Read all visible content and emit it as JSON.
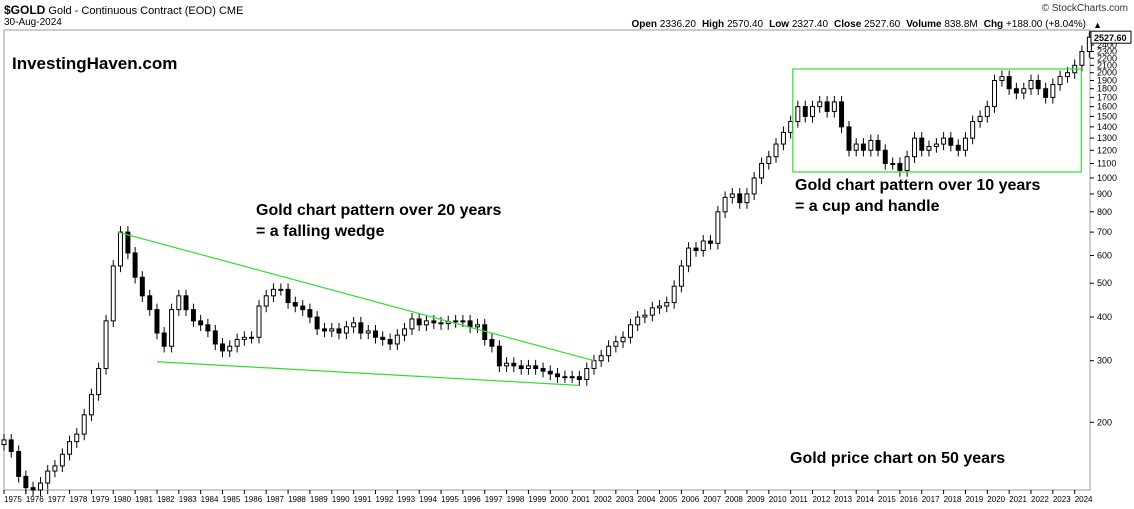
{
  "header": {
    "symbol": "$GOLD",
    "title": "Gold - Continuous Contract (EOD)",
    "exchange": "CME",
    "date": "30-Aug-2024",
    "source": "© StockCharts.com",
    "ohlc": [
      {
        "label": "Open",
        "value": "2336.20"
      },
      {
        "label": "High",
        "value": "2570.40"
      },
      {
        "label": "Low",
        "value": "2327.40"
      },
      {
        "label": "Close",
        "value": "2527.60"
      },
      {
        "label": "Volume",
        "value": "838.8M"
      },
      {
        "label": "Chg",
        "value": "+188.00 (+8.04%)"
      }
    ],
    "change_arrow": "▲"
  },
  "watermark": "InvestingHaven.com",
  "annotations": {
    "wedge_line1": "Gold chart pattern over 20 years",
    "wedge_line2": "= a falling wedge",
    "cup_line1": "Gold chart pattern over 10 years",
    "cup_line2": "= a cup and handle",
    "summary": "Gold price chart on 50 years"
  },
  "colors": {
    "candle": "#000000",
    "pattern": "#33dd33",
    "last_price_marker": "#000000"
  },
  "chart_data": {
    "type": "candlestick",
    "scale": "log",
    "ylim": [
      128,
      2650
    ],
    "xlim": [
      1975,
      2024.7
    ],
    "y_ticks": [
      200,
      300,
      400,
      500,
      600,
      700,
      800,
      900,
      1000,
      1100,
      1200,
      1300,
      1400,
      1500,
      1600,
      1700,
      1800,
      1900,
      2000,
      2100,
      2200,
      2300,
      2400,
      2500
    ],
    "x_ticks": [
      "1975",
      "1976",
      "1977",
      "1978",
      "1979",
      "1980",
      "1981",
      "1982",
      "1983",
      "1984",
      "1985",
      "1986",
      "1987",
      "1988",
      "1989",
      "1990",
      "1991",
      "1992",
      "1993",
      "1994",
      "1995",
      "1996",
      "1997",
      "1998",
      "1999",
      "2000",
      "2001",
      "2002",
      "2003",
      "2004",
      "2005",
      "2006",
      "2007",
      "2008",
      "2009",
      "2010",
      "2011",
      "2012",
      "2013",
      "2014",
      "2015",
      "2016",
      "2017",
      "2018",
      "2019",
      "2020",
      "2021",
      "2022",
      "2023",
      "2024"
    ],
    "last_price": "2527.60",
    "series": [
      {
        "x": [
          1975.0,
          1975.33,
          1975.67,
          1976.0,
          1976.33,
          1976.67,
          1977.0,
          1977.33,
          1977.67,
          1978.0,
          1978.33,
          1978.67,
          1979.0,
          1979.33,
          1979.67,
          1980.0,
          1980.33,
          1980.67,
          1981.0,
          1981.33,
          1981.67,
          1982.0,
          1982.33,
          1982.67,
          1983.0,
          1983.33,
          1983.67,
          1984.0,
          1984.33,
          1984.67,
          1985.0,
          1985.33,
          1985.67,
          1986.0,
          1986.33,
          1986.67,
          1987.0,
          1987.33,
          1987.67,
          1988.0,
          1988.33,
          1988.67,
          1989.0,
          1989.33,
          1989.67,
          1990.0,
          1990.33,
          1990.67,
          1991.0,
          1991.33,
          1991.67,
          1992.0,
          1992.33,
          1992.67,
          1993.0,
          1993.33,
          1993.67,
          1994.0,
          1994.33,
          1994.67,
          1995.0,
          1995.33,
          1995.67,
          1996.0,
          1996.33,
          1996.67,
          1997.0,
          1997.33,
          1997.67,
          1998.0,
          1998.33,
          1998.67,
          1999.0,
          1999.33,
          1999.67,
          2000.0,
          2000.33,
          2000.67,
          2001.0,
          2001.33,
          2001.67,
          2002.0,
          2002.33,
          2002.67,
          2003.0,
          2003.33,
          2003.67,
          2004.0,
          2004.33,
          2004.67,
          2005.0,
          2005.33,
          2005.67,
          2006.0,
          2006.33,
          2006.67,
          2007.0,
          2007.33,
          2007.67,
          2008.0,
          2008.33,
          2008.67,
          2009.0,
          2009.33,
          2009.67,
          2010.0,
          2010.33,
          2010.67,
          2011.0,
          2011.33,
          2011.67,
          2012.0,
          2012.33,
          2012.67,
          2013.0,
          2013.33,
          2013.67,
          2014.0,
          2014.33,
          2014.67,
          2015.0,
          2015.33,
          2015.67,
          2016.0,
          2016.33,
          2016.67,
          2017.0,
          2017.33,
          2017.67,
          2018.0,
          2018.33,
          2018.67,
          2019.0,
          2019.33,
          2019.67,
          2020.0,
          2020.33,
          2020.67,
          2021.0,
          2021.33,
          2021.67,
          2022.0,
          2022.33,
          2022.67,
          2023.0,
          2023.33,
          2023.67,
          2024.0,
          2024.33,
          2024.67
        ],
        "close": [
          178,
          165,
          140,
          130,
          128,
          134,
          145,
          150,
          162,
          176,
          185,
          210,
          240,
          285,
          390,
          560,
          700,
          610,
          520,
          460,
          420,
          360,
          330,
          420,
          460,
          420,
          390,
          380,
          365,
          335,
          320,
          330,
          345,
          350,
          350,
          430,
          460,
          480,
          480,
          440,
          430,
          420,
          400,
          370,
          365,
          370,
          360,
          375,
          385,
          360,
          365,
          350,
          345,
          335,
          355,
          370,
          395,
          380,
          390,
          385,
          383,
          388,
          390,
          390,
          375,
          380,
          345,
          330,
          290,
          295,
          290,
          285,
          290,
          285,
          280,
          275,
          270,
          270,
          270,
          265,
          285,
          300,
          310,
          330,
          340,
          350,
          380,
          400,
          405,
          425,
          430,
          440,
          490,
          560,
          630,
          620,
          660,
          650,
          800,
          880,
          900,
          850,
          900,
          1000,
          1100,
          1150,
          1250,
          1350,
          1450,
          1600,
          1500,
          1600,
          1650,
          1550,
          1650,
          1400,
          1200,
          1250,
          1200,
          1280,
          1200,
          1100,
          1100,
          1050,
          1150,
          1300,
          1200,
          1230,
          1250,
          1300,
          1240,
          1200,
          1300,
          1450,
          1500,
          1600,
          1900,
          1950,
          1800,
          1750,
          1800,
          1900,
          1800,
          1700,
          1850,
          1950,
          2000,
          2100,
          2300,
          2527.6
        ]
      }
    ],
    "patterns": [
      {
        "name": "falling wedge",
        "upper_line": [
          [
            1980.2,
            700
          ],
          [
            2002.0,
            300
          ]
        ],
        "lower_line": [
          [
            1982.0,
            298
          ],
          [
            2001.3,
            255
          ]
        ]
      },
      {
        "name": "cup and handle",
        "box": {
          "x0": 2011.1,
          "x1": 2024.3,
          "y0": 1040,
          "y1": 2050
        }
      }
    ]
  }
}
